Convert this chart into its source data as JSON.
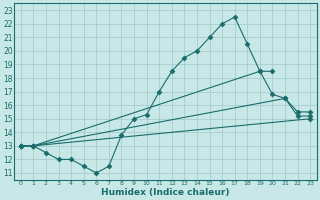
{
  "title": "",
  "xlabel": "Humidex (Indice chaleur)",
  "ylabel": "",
  "bg_color": "#c8e8e8",
  "grid_color": "#a8cccc",
  "line_color": "#1a6b6b",
  "xlim": [
    -0.5,
    23.5
  ],
  "ylim": [
    10.5,
    23.5
  ],
  "xticks": [
    0,
    1,
    2,
    3,
    4,
    5,
    6,
    7,
    8,
    9,
    10,
    11,
    12,
    13,
    14,
    15,
    16,
    17,
    18,
    19,
    20,
    21,
    22,
    23
  ],
  "yticks": [
    11,
    12,
    13,
    14,
    15,
    16,
    17,
    18,
    19,
    20,
    21,
    22,
    23
  ],
  "s1x": [
    0,
    1,
    2,
    3,
    4,
    5,
    6,
    7,
    8,
    9,
    10,
    11,
    12,
    13,
    14,
    15,
    16,
    17,
    18,
    19,
    20
  ],
  "s1y": [
    13,
    13,
    12.5,
    12,
    12,
    11.5,
    11,
    11.5,
    13.8,
    15,
    15.3,
    17,
    18.5,
    19.5,
    20,
    21,
    22,
    22.5,
    20.5,
    18.5,
    18.5
  ],
  "s2x": [
    0,
    1,
    19,
    20,
    21,
    22,
    23
  ],
  "s2y": [
    13,
    13,
    18.5,
    16.8,
    16.5,
    15.2,
    15.2
  ],
  "s3x": [
    0,
    1,
    21,
    22,
    23
  ],
  "s3y": [
    13,
    13,
    16.5,
    15.5,
    15.5
  ],
  "s4x": [
    0,
    1,
    23
  ],
  "s4y": [
    13,
    13,
    15.0
  ]
}
